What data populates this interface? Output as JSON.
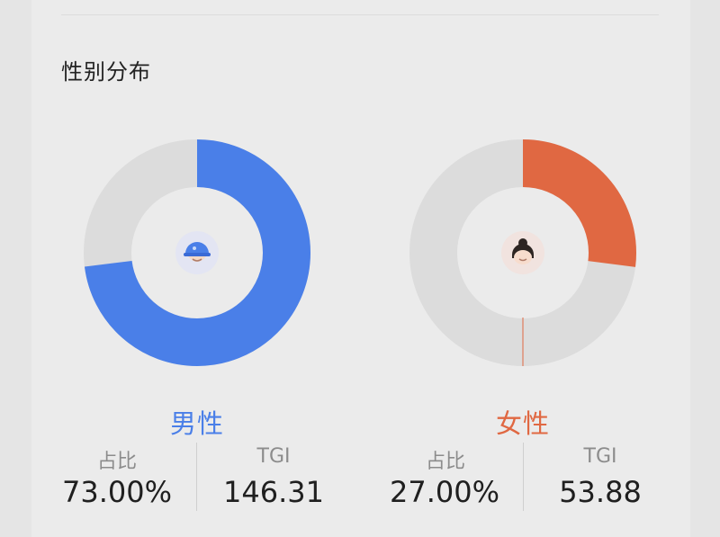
{
  "section": {
    "title": "性别分布"
  },
  "colors": {
    "male": "#4a7fe8",
    "female": "#e06842",
    "track": "#dcdcdc"
  },
  "male": {
    "label": "男性",
    "share_label": "占比",
    "share_value": "73.00%",
    "tgi_label": "TGI",
    "tgi_value": "146.31",
    "icon": "male-avatar-icon"
  },
  "female": {
    "label": "女性",
    "share_label": "占比",
    "share_value": "27.00%",
    "tgi_label": "TGI",
    "tgi_value": "53.88",
    "icon": "female-avatar-icon"
  },
  "chart_data": [
    {
      "type": "pie",
      "categories": [
        "男性",
        "other"
      ],
      "values": [
        73,
        27
      ]
    },
    {
      "type": "pie",
      "categories": [
        "女性",
        "other"
      ],
      "values": [
        27,
        73
      ]
    }
  ]
}
